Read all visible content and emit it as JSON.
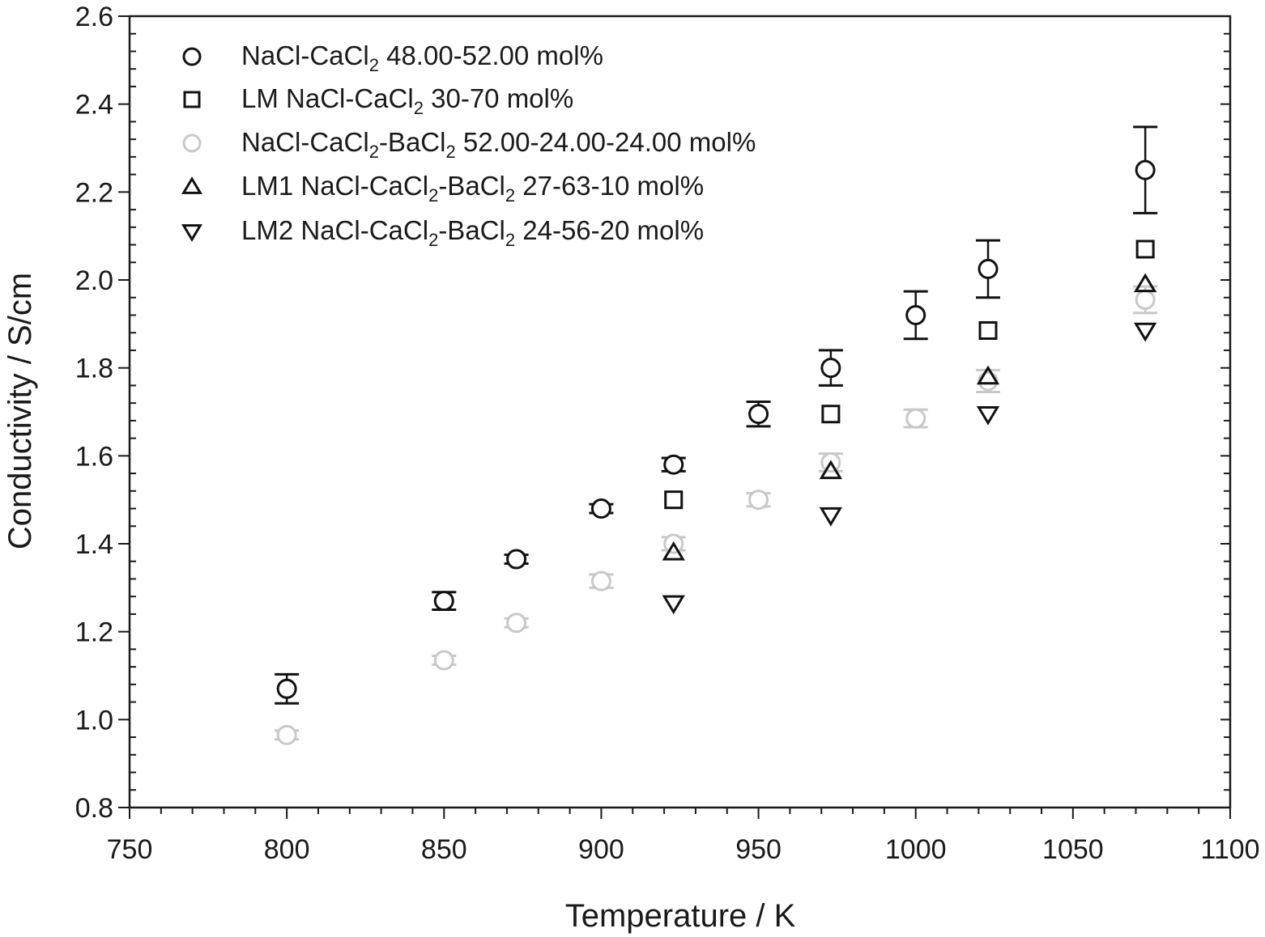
{
  "chart_data": {
    "type": "scatter",
    "title": "",
    "xlabel": "Temperature / K",
    "ylabel": "Conductivity / S/cm",
    "xlim": [
      750,
      1100
    ],
    "ylim": [
      0.8,
      2.6
    ],
    "x_ticks": [
      750,
      800,
      850,
      900,
      950,
      1000,
      1050,
      1100
    ],
    "y_ticks": [
      0.8,
      1.0,
      1.2,
      1.4,
      1.6,
      1.8,
      2.0,
      2.2,
      2.4,
      2.6
    ],
    "x_tick_labels": [
      "750",
      "800",
      "850",
      "900",
      "950",
      "1000",
      "1050",
      "1100"
    ],
    "y_tick_labels": [
      "0.8",
      "1.0",
      "1.2",
      "1.4",
      "1.6",
      "1.8",
      "2.0",
      "2.2",
      "2.4",
      "2.6"
    ],
    "grid": false,
    "legend_position": "upper left",
    "series": [
      {
        "name": "NaCl-CaCl2 48.00-52.00 mol%",
        "label_parts": [
          "NaCl-CaCl",
          "2",
          " 48.00-52.00 mol%"
        ],
        "marker": "circle",
        "color": "#111111",
        "x": [
          800,
          850,
          873,
          900,
          923,
          950,
          973,
          1000,
          1023,
          1073
        ],
        "y": [
          1.07,
          1.27,
          1.365,
          1.48,
          1.58,
          1.695,
          1.8,
          1.92,
          2.025,
          2.25
        ],
        "yerr": [
          0.033,
          0.02,
          0.01,
          0.01,
          0.015,
          0.028,
          0.04,
          0.054,
          0.065,
          0.098
        ]
      },
      {
        "name": "LM NaCl-CaCl2 30-70 mol%",
        "label_parts": [
          "LM NaCl-CaCl",
          "2",
          " 30-70 mol%"
        ],
        "marker": "square",
        "color": "#111111",
        "x": [
          923,
          973,
          1023,
          1073
        ],
        "y": [
          1.5,
          1.695,
          1.885,
          2.07
        ],
        "yerr": [
          0,
          0,
          0,
          0
        ]
      },
      {
        "name": "NaCl-CaCl2-BaCl2 52.00-24.00-24.00 mol%",
        "label_parts": [
          "NaCl-CaCl",
          "2",
          "-BaCl",
          "2",
          " 52.00-24.00-24.00 mol%"
        ],
        "marker": "circle",
        "color": "#c8c8c8",
        "x": [
          800,
          850,
          873,
          900,
          923,
          950,
          973,
          1000,
          1023,
          1073
        ],
        "y": [
          0.965,
          1.135,
          1.22,
          1.315,
          1.4,
          1.5,
          1.585,
          1.685,
          1.77,
          1.955
        ],
        "yerr": [
          0.01,
          0.01,
          0.01,
          0.015,
          0.015,
          0.015,
          0.02,
          0.02,
          0.025,
          0.03
        ]
      },
      {
        "name": "LM1 NaCl-CaCl2-BaCl2 27-63-10 mol%",
        "label_parts": [
          "LM1 NaCl-CaCl",
          "2",
          "-BaCl",
          "2",
          " 27-63-10 mol%"
        ],
        "marker": "triangle-up",
        "color": "#111111",
        "x": [
          923,
          973,
          1023,
          1073
        ],
        "y": [
          1.38,
          1.565,
          1.78,
          1.99
        ],
        "yerr": [
          0,
          0,
          0,
          0
        ]
      },
      {
        "name": "LM2 NaCl-CaCl2-BaCl2 24-56-20 mol%",
        "label_parts": [
          "LM2 NaCl-CaCl",
          "2",
          "-BaCl",
          "2",
          " 24-56-20 mol%"
        ],
        "marker": "triangle-down",
        "color": "#111111",
        "x": [
          923,
          973,
          1023,
          1073
        ],
        "y": [
          1.265,
          1.465,
          1.695,
          1.885
        ],
        "yerr": [
          0,
          0,
          0,
          0
        ]
      }
    ]
  },
  "axes": {
    "x_title": "Temperature / K",
    "y_title": "Conductivity / S/cm"
  },
  "legend": {
    "items": [
      {
        "marker": "circle",
        "color": "#111111",
        "text": "NaCl-CaCl",
        "sub": "2",
        "rest": " 48.00-52.00 mol%"
      },
      {
        "marker": "square",
        "color": "#111111",
        "text": "LM NaCl-CaCl",
        "sub": "2",
        "rest": " 30-70 mol%"
      },
      {
        "marker": "circle",
        "color": "#c8c8c8",
        "text": "NaCl-CaCl",
        "sub": "2",
        "mid": "-BaCl",
        "sub2": "2",
        "rest": " 52.00-24.00-24.00 mol%"
      },
      {
        "marker": "triangle-up",
        "color": "#111111",
        "text": "LM1 NaCl-CaCl",
        "sub": "2",
        "mid": "-BaCl",
        "sub2": "2",
        "rest": " 27-63-10 mol%"
      },
      {
        "marker": "triangle-down",
        "color": "#111111",
        "text": "LM2 NaCl-CaCl",
        "sub": "2",
        "mid": "-BaCl",
        "sub2": "2",
        "rest": " 24-56-20 mol%"
      }
    ]
  }
}
